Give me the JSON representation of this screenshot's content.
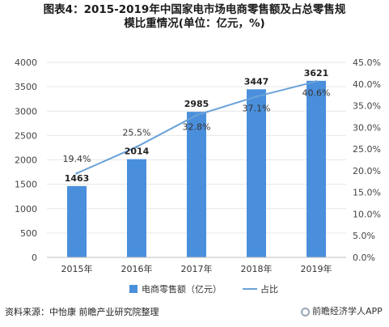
{
  "title_line1": "图表4：2015-2019年中国家电市场电商零售额及占总零售规",
  "title_line2": "模比重情况(单位：亿元，%)",
  "source": "资料来源：中怡康 前瞻产业研究院整理",
  "watermark": "前瞻经济学人APP",
  "colors": {
    "bar": "#4a8fdc",
    "line": "#6aa2d8",
    "grid": "#e6e6e6"
  },
  "chart_data": {
    "type": "bar",
    "categories": [
      "2015年",
      "2016年",
      "2017年",
      "2018年",
      "2019年"
    ],
    "series": [
      {
        "name": "电商零售额（亿元）",
        "type": "bar",
        "axis": "left",
        "values": [
          1463,
          2014,
          2985,
          3447,
          3621
        ]
      },
      {
        "name": "占比",
        "type": "line",
        "axis": "right",
        "values": [
          19.4,
          25.5,
          32.8,
          37.1,
          40.6
        ],
        "labels": [
          "19.4%",
          "25.5%",
          "32.8%",
          "37.1%",
          "40.6%"
        ]
      }
    ],
    "y_left": {
      "min": 0,
      "max": 4000,
      "ticks": [
        "0",
        "500",
        "1000",
        "1500",
        "2000",
        "2500",
        "3000",
        "3500",
        "4000"
      ]
    },
    "y_right": {
      "min": 0,
      "max": 45,
      "ticks": [
        "0.0%",
        "5.0%",
        "10.0%",
        "15.0%",
        "20.0%",
        "25.0%",
        "30.0%",
        "35.0%",
        "40.0%",
        "45.0%"
      ]
    },
    "grid": true,
    "legend_position": "bottom"
  }
}
